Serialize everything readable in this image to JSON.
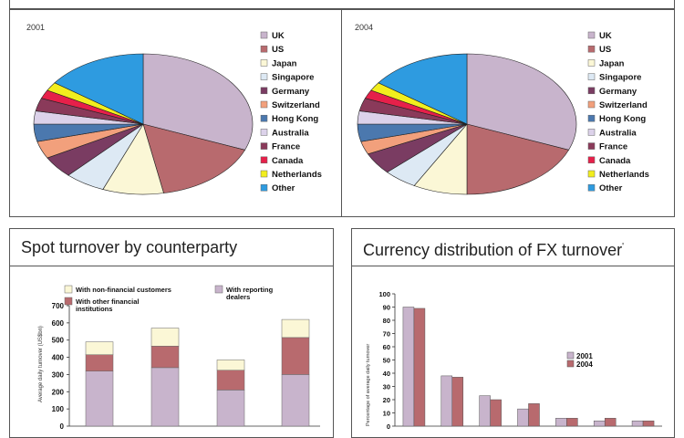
{
  "pie_labels": [
    "UK",
    "US",
    "Japan",
    "Singapore",
    "Germany",
    "Switzerland",
    "Hong Kong",
    "Australia",
    "France",
    "Canada",
    "Netherlands",
    "Other"
  ],
  "pie_colors": [
    "#c8b4cc",
    "#b86a6e",
    "#fbf7d6",
    "#dde9f4",
    "#7a3c62",
    "#f2a07c",
    "#4b78ae",
    "#dcd2ea",
    "#8a3a5a",
    "#e6204a",
    "#f2ee1e",
    "#2e9be0"
  ],
  "bar_colors": {
    "dealers": "#c8b4cc",
    "financial": "#b86a6e",
    "nonfinancial": "#fbf7d6",
    "y2001": "#c8b4cc",
    "y2004": "#b86a6e"
  },
  "chart_data": [
    {
      "type": "pie",
      "title": "2001",
      "labels": [
        "UK",
        "US",
        "Japan",
        "Singapore",
        "Germany",
        "Switzerland",
        "Hong Kong",
        "Australia",
        "France",
        "Canada",
        "Netherlands",
        "Other"
      ],
      "values": [
        31,
        16,
        9,
        6,
        5,
        4,
        4,
        3,
        3,
        2,
        2,
        15
      ]
    },
    {
      "type": "pie",
      "title": "2004",
      "labels": [
        "UK",
        "US",
        "Japan",
        "Singapore",
        "Germany",
        "Switzerland",
        "Hong Kong",
        "Australia",
        "France",
        "Canada",
        "Netherlands",
        "Other"
      ],
      "values": [
        31,
        19,
        8,
        5,
        5,
        3,
        4,
        3,
        3,
        2,
        2,
        15
      ]
    },
    {
      "type": "bar",
      "stacked": true,
      "title": "Spot turnover by counterparty",
      "ylabel": "Average daily turnover (US$bn)",
      "ylim": [
        0,
        700
      ],
      "yticks": [
        "0",
        "100",
        "200",
        "300",
        "400",
        "500",
        "600",
        "700"
      ],
      "categories": [
        "",
        "",
        "",
        ""
      ],
      "series": [
        {
          "name": "With reporting dealers",
          "values": [
            320,
            340,
            210,
            300
          ]
        },
        {
          "name": "With other financial institutions",
          "values": [
            95,
            125,
            115,
            215
          ]
        },
        {
          "name": "With non-financial customers",
          "values": [
            75,
            105,
            60,
            105
          ]
        }
      ]
    },
    {
      "type": "bar",
      "title": "Currency distribution of FX turnover",
      "title_mark": "'",
      "ylabel": "Percentage of average daily turnover",
      "ylim": [
        0,
        100
      ],
      "yticks": [
        "0",
        "10",
        "20",
        "30",
        "40",
        "50",
        "60",
        "70",
        "80",
        "90",
        "100"
      ],
      "categories": [
        "",
        "",
        "",
        "",
        "",
        "",
        ""
      ],
      "series": [
        {
          "name": "2001",
          "values": [
            90,
            38,
            23,
            13,
            6,
            4,
            4
          ]
        },
        {
          "name": "2004",
          "values": [
            89,
            37,
            20,
            17,
            6,
            6,
            4
          ]
        }
      ]
    }
  ]
}
